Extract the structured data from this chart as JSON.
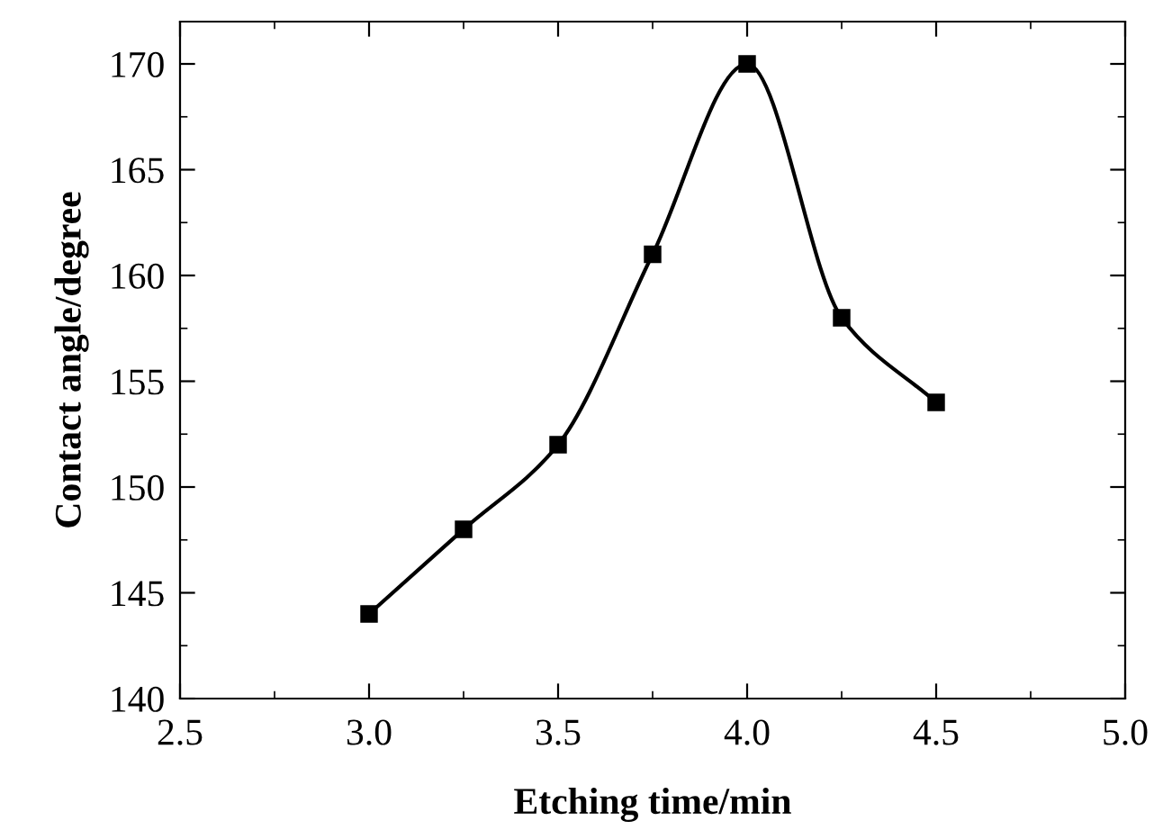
{
  "chart_data": {
    "type": "line",
    "xlabel": "Etching time/min",
    "ylabel": "Contact angle/degree",
    "x": [
      3.0,
      3.25,
      3.5,
      3.75,
      4.0,
      4.25,
      4.5
    ],
    "series": [
      {
        "color": "#000000",
        "values": [
          144,
          148,
          152,
          161,
          170,
          158,
          154
        ]
      }
    ],
    "xlim": [
      2.5,
      5.0
    ],
    "xticks": [
      {
        "value": 2.5,
        "label": "2.5"
      },
      {
        "value": 3.0,
        "label": "3.0"
      },
      {
        "value": 3.5,
        "label": "3.5"
      },
      {
        "value": 4.0,
        "label": "4.0"
      },
      {
        "value": 4.5,
        "label": "4.5"
      },
      {
        "value": 5.0,
        "label": "5.0"
      }
    ],
    "ylim": [
      140,
      172
    ],
    "yticks": [
      140,
      145,
      150,
      155,
      160,
      165,
      170
    ],
    "marker": "square",
    "line_style": "solid",
    "grid": false,
    "legend": false
  }
}
